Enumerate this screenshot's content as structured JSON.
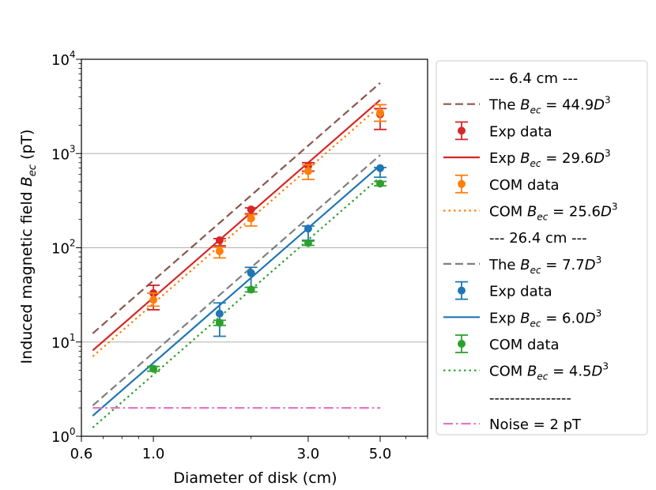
{
  "chart_data": {
    "type": "scatter",
    "xscale": "log",
    "yscale": "log",
    "xlabel": "Diameter of disk (cm)",
    "ylabel": "Induced magnetic field $B_{ec}$ (pT)",
    "ylabel_parts": {
      "main": "Induced magnetic field ",
      "B": "B",
      "sub": "ec",
      "unit": " (pT)"
    },
    "xlim": [
      0.6,
      7.0
    ],
    "ylim": [
      1,
      10000
    ],
    "x_ticks": [
      0.6,
      1.0,
      3.0,
      5.0
    ],
    "x_tick_labels": [
      "0.6",
      "1.0",
      "3.0",
      "5.0"
    ],
    "y_ticks": [
      1,
      10,
      100,
      1000,
      10000
    ],
    "y_tick_exponents": [
      "0",
      "1",
      "2",
      "3",
      "4"
    ],
    "y_tick_base": "10",
    "grid": "horizontal major",
    "legend_position": "outside right",
    "series": [
      {
        "name": "The Bec = 44.9D^3",
        "kind": "line",
        "style": "dashed",
        "color": "#8c564b",
        "coef": 44.9,
        "x_range": [
          0.65,
          5.0
        ]
      },
      {
        "name": "Exp Bec = 29.6D^3",
        "kind": "line",
        "style": "solid",
        "color": "#d62728",
        "coef": 29.6,
        "x_range": [
          0.65,
          5.0
        ]
      },
      {
        "name": "COM Bec = 25.6D^3",
        "kind": "line",
        "style": "dotted",
        "color": "#ff7f0e",
        "coef": 25.6,
        "x_range": [
          0.65,
          5.0
        ]
      },
      {
        "name": "The Bec = 7.7D^3",
        "kind": "line",
        "style": "dashed",
        "color": "#7f7f7f",
        "coef": 7.7,
        "x_range": [
          0.65,
          5.0
        ]
      },
      {
        "name": "Exp Bec = 6.0D^3",
        "kind": "line",
        "style": "solid",
        "color": "#1f77b4",
        "coef": 6.0,
        "x_range": [
          0.65,
          5.0
        ]
      },
      {
        "name": "COM Bec = 4.5D^3",
        "kind": "line",
        "style": "dotted",
        "color": "#2ca02c",
        "coef": 4.5,
        "x_range": [
          0.65,
          5.0
        ]
      },
      {
        "name": "Noise = 2 pT",
        "kind": "line",
        "style": "dashdot",
        "color": "#e377c2",
        "constant": 2,
        "x_range": [
          0.65,
          5.0
        ]
      },
      {
        "name": "Exp data (6.4 cm)",
        "kind": "errorbar",
        "color": "#d62728",
        "points": [
          {
            "x": 1.0,
            "y": 33,
            "lo": 22,
            "hi": 40
          },
          {
            "x": 1.6,
            "y": 120,
            "lo": 105,
            "hi": 125
          },
          {
            "x": 2.0,
            "y": 255,
            "lo": 230,
            "hi": 265
          },
          {
            "x": 3.0,
            "y": 740,
            "lo": 650,
            "hi": 800
          },
          {
            "x": 5.0,
            "y": 2600,
            "lo": 1800,
            "hi": 3000
          }
        ]
      },
      {
        "name": "COM data (6.4 cm)",
        "kind": "errorbar",
        "color": "#ff7f0e",
        "points": [
          {
            "x": 1.0,
            "y": 28,
            "lo": 24,
            "hi": 33
          },
          {
            "x": 1.6,
            "y": 92,
            "lo": 78,
            "hi": 102
          },
          {
            "x": 2.0,
            "y": 205,
            "lo": 170,
            "hi": 225
          },
          {
            "x": 3.0,
            "y": 650,
            "lo": 530,
            "hi": 760
          },
          {
            "x": 5.0,
            "y": 2700,
            "lo": 2200,
            "hi": 3300
          }
        ]
      },
      {
        "name": "Exp data (26.4 cm)",
        "kind": "errorbar",
        "color": "#1f77b4",
        "points": [
          {
            "x": 1.6,
            "y": 20,
            "lo": 11.5,
            "hi": 26
          },
          {
            "x": 2.0,
            "y": 54,
            "lo": 38,
            "hi": 62
          },
          {
            "x": 3.0,
            "y": 160,
            "lo": 120,
            "hi": 170
          },
          {
            "x": 5.0,
            "y": 700,
            "lo": 560,
            "hi": 710
          }
        ]
      },
      {
        "name": "COM data (26.4 cm)",
        "kind": "errorbar",
        "color": "#2ca02c",
        "points": [
          {
            "x": 1.0,
            "y": 5.2,
            "lo": 4.9,
            "hi": 5.5
          },
          {
            "x": 1.6,
            "y": 16,
            "lo": 15,
            "hi": 17
          },
          {
            "x": 2.0,
            "y": 36,
            "lo": 34,
            "hi": 38
          },
          {
            "x": 3.0,
            "y": 112,
            "lo": 106,
            "hi": 118
          },
          {
            "x": 5.0,
            "y": 480,
            "lo": 455,
            "hi": 505
          }
        ]
      }
    ],
    "legend": [
      {
        "type": "header",
        "text": "--- 6.4 cm ---"
      },
      {
        "type": "line",
        "style": "dashed",
        "color": "#8c564b",
        "prefix": "The",
        "coef": "44.9"
      },
      {
        "type": "marker",
        "color": "#d62728",
        "text": "Exp data"
      },
      {
        "type": "line",
        "style": "solid",
        "color": "#d62728",
        "prefix": "Exp",
        "coef": "29.6"
      },
      {
        "type": "marker",
        "color": "#ff7f0e",
        "text": "COM data"
      },
      {
        "type": "line",
        "style": "dotted",
        "color": "#ff7f0e",
        "prefix": "COM",
        "coef": "25.6"
      },
      {
        "type": "header",
        "text": "--- 26.4 cm ---"
      },
      {
        "type": "line",
        "style": "dashed",
        "color": "#7f7f7f",
        "prefix": "The",
        "coef": "7.7"
      },
      {
        "type": "marker",
        "color": "#1f77b4",
        "text": "Exp data"
      },
      {
        "type": "line",
        "style": "solid",
        "color": "#1f77b4",
        "prefix": "Exp",
        "coef": "6.0"
      },
      {
        "type": "marker",
        "color": "#2ca02c",
        "text": "COM data"
      },
      {
        "type": "line",
        "style": "dotted",
        "color": "#2ca02c",
        "prefix": "COM",
        "coef": "4.5"
      },
      {
        "type": "header",
        "text": "----------------"
      },
      {
        "type": "plain-line",
        "style": "dashdot",
        "color": "#e377c2",
        "text": "Noise = 2 pT"
      }
    ]
  }
}
